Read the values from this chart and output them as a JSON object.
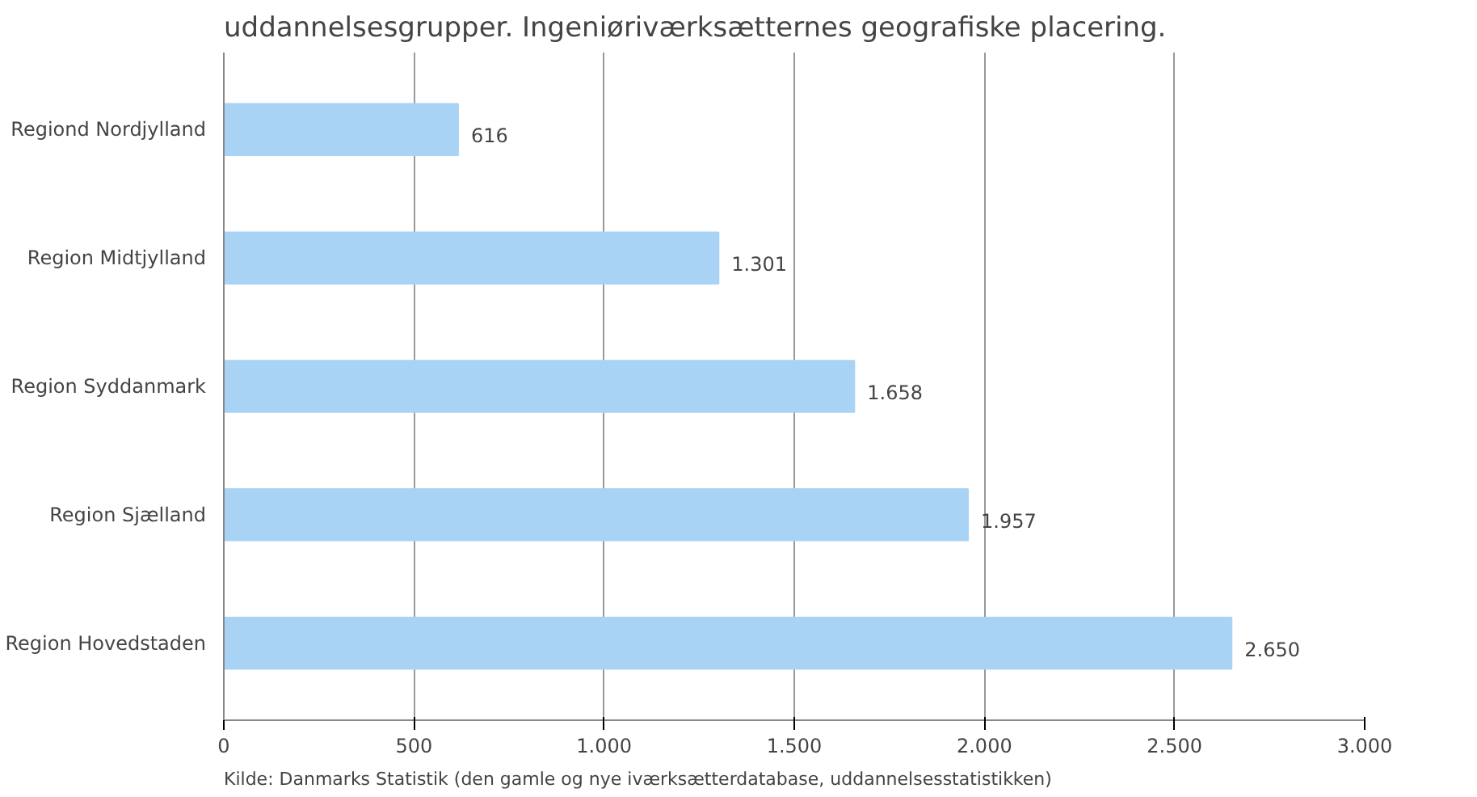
{
  "chart_data": {
    "type": "bar",
    "orientation": "horizontal",
    "title": "uddannelsesgrupper. Ingeniøriværksætternes geografiske placering.",
    "categories": [
      "Regiond Nordjylland",
      "Region Midtjylland",
      "Region Syddanmark",
      "Region Sjælland",
      "Region Hovedstaden"
    ],
    "values": [
      616,
      1301,
      1658,
      1957,
      2650
    ],
    "value_labels": [
      "616",
      "1.301",
      "1.658",
      "1.957",
      "2.650"
    ],
    "color": "#a9d3f5",
    "xlim": [
      0,
      3000
    ],
    "xticks": [
      0,
      500,
      {
        "value": 1000,
        "label": "1.000"
      },
      {
        "value": 1500,
        "label": "1.500"
      },
      {
        "value": 2000,
        "label": "2.000"
      },
      {
        "value": 2500,
        "label": "2.500"
      },
      {
        "value": 3000,
        "label": "3.000"
      }
    ],
    "grid": "x",
    "annotations": [
      "Kilde: Danmarks Statistik (den gamle og nye iværksætterdatabase, uddannelsesstatistikken)"
    ]
  }
}
